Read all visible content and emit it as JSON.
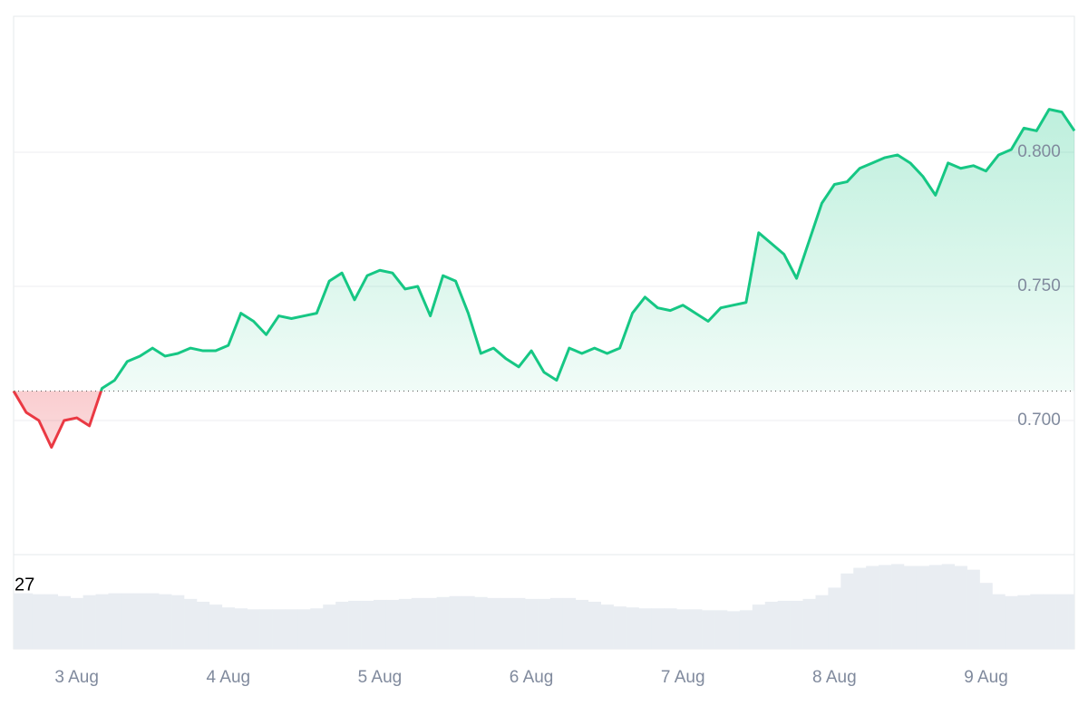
{
  "chart_data": {
    "type": "line",
    "categories": [
      null,
      null,
      null,
      null,
      null,
      "3 Aug",
      null,
      null,
      null,
      null,
      null,
      null,
      null,
      null,
      null,
      null,
      null,
      "4 Aug",
      null,
      null,
      null,
      null,
      null,
      null,
      null,
      null,
      null,
      null,
      null,
      "5 Aug",
      null,
      null,
      null,
      null,
      null,
      null,
      null,
      null,
      null,
      null,
      null,
      "6 Aug",
      null,
      null,
      null,
      null,
      null,
      null,
      null,
      null,
      null,
      null,
      null,
      "7 Aug",
      null,
      null,
      null,
      null,
      null,
      null,
      null,
      null,
      null,
      null,
      null,
      "8 Aug",
      null,
      null,
      null,
      null,
      null,
      null,
      null,
      null,
      null,
      null,
      null,
      "9 Aug",
      null,
      null,
      null,
      null,
      null,
      null,
      null
    ],
    "values": [
      0.711,
      0.703,
      0.7,
      0.69,
      0.7,
      0.701,
      0.698,
      0.712,
      0.715,
      0.722,
      0.724,
      0.727,
      0.724,
      0.725,
      0.727,
      0.726,
      0.726,
      0.728,
      0.74,
      0.737,
      0.732,
      0.739,
      0.738,
      0.739,
      0.74,
      0.752,
      0.755,
      0.745,
      0.754,
      0.756,
      0.755,
      0.749,
      0.75,
      0.739,
      0.754,
      0.752,
      0.74,
      0.725,
      0.727,
      0.723,
      0.72,
      0.726,
      0.718,
      0.715,
      0.727,
      0.725,
      0.727,
      0.725,
      0.727,
      0.74,
      0.746,
      0.742,
      0.741,
      0.743,
      0.74,
      0.737,
      0.742,
      0.743,
      0.744,
      0.77,
      0.766,
      0.762,
      0.753,
      0.767,
      0.781,
      0.788,
      0.789,
      0.794,
      0.796,
      0.798,
      0.799,
      0.796,
      0.791,
      0.784,
      0.796,
      0.794,
      0.795,
      0.793,
      0.799,
      0.801,
      0.809,
      0.808,
      0.816,
      0.815,
      0.808
    ],
    "baseline": 0.711,
    "ylim": [
      0.65,
      0.85
    ],
    "yticks": [
      {
        "value": 0.7,
        "label": "0.700"
      },
      {
        "value": 0.75,
        "label": "0.750"
      },
      {
        "value": 0.8,
        "label": "0.800"
      }
    ],
    "grid": true,
    "up_color": "#16c784",
    "down_color": "#ea3943",
    "volume": {
      "values": [
        59,
        59,
        58,
        58,
        56,
        54,
        57,
        58,
        59,
        59,
        59,
        59,
        58,
        57,
        53,
        50,
        47,
        44,
        43,
        42,
        42,
        42,
        42,
        42,
        43,
        47,
        50,
        51,
        51,
        52,
        52,
        53,
        54,
        54,
        55,
        56,
        56,
        55,
        54,
        54,
        54,
        53,
        53,
        54,
        54,
        52,
        50,
        47,
        45,
        44,
        43,
        43,
        43,
        42,
        42,
        41,
        41,
        40,
        41,
        47,
        50,
        51,
        51,
        53,
        57,
        65,
        80,
        86,
        88,
        89,
        90,
        88,
        88,
        89,
        90,
        88,
        84,
        70,
        58,
        56,
        57,
        58,
        58,
        58,
        58
      ],
      "ylim": [
        0,
        100
      ],
      "color": "#e9edf2"
    },
    "volume_label": "27"
  }
}
